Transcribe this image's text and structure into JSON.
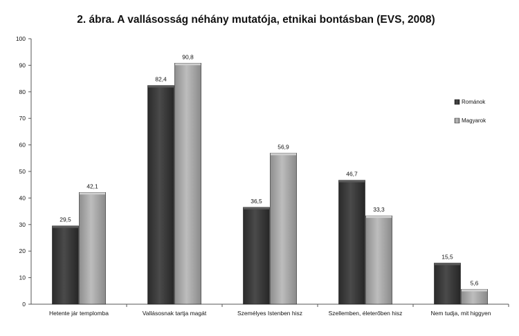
{
  "chart_data": {
    "type": "bar",
    "title": "2. ábra. A vallásosság néhány mutatója, etnikai bontásban (EVS, 2008)",
    "xlabel": "",
    "ylabel": "",
    "ylim": [
      0,
      100
    ],
    "yticks": [
      0,
      10,
      20,
      30,
      40,
      50,
      60,
      70,
      80,
      90,
      100
    ],
    "ytick_labels": [
      "0",
      "10",
      "20",
      "30",
      "40",
      "50",
      "60",
      "70",
      "80",
      "90",
      "100"
    ],
    "grid": false,
    "legend_position": "right",
    "categories": [
      "Hetente jár templomba",
      "Vallásosnak tartja magát",
      "Személyes Istenben hisz",
      "Szellemben, életerőben hisz",
      "Nem tudja, mit higgyen"
    ],
    "series": [
      {
        "name": "Románok",
        "color": "#3a3a3a",
        "values": [
          29.5,
          82.4,
          36.5,
          46.7,
          15.5
        ],
        "labels": [
          "29,5",
          "82,4",
          "36,5",
          "46,7",
          "15,5"
        ]
      },
      {
        "name": "Magyarok",
        "color": "#a8a8a8",
        "values": [
          42.1,
          90.8,
          56.9,
          33.3,
          5.6
        ],
        "labels": [
          "42,1",
          "90,8",
          "56,9",
          "33,3",
          "5,6"
        ]
      }
    ]
  }
}
